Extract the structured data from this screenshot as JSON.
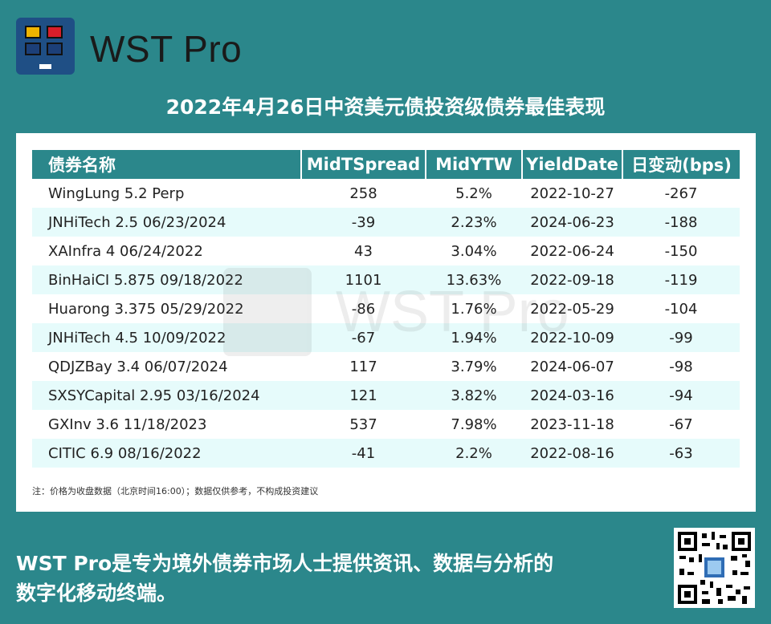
{
  "brand": {
    "name": "WST Pro"
  },
  "title": "2022年4月26日中资美元债投资级债券最佳表现",
  "table": {
    "headers": [
      "债券名称",
      "MidTSpread",
      "MidYTW",
      "YieldDate",
      "日变动(bps)"
    ],
    "rows": [
      [
        "WingLung 5.2 Perp",
        "258",
        "5.2%",
        "2022-10-27",
        "-267"
      ],
      [
        "JNHiTech 2.5 06/23/2024",
        "-39",
        "2.23%",
        "2024-06-23",
        "-188"
      ],
      [
        "XAInfra 4 06/24/2022",
        "43",
        "3.04%",
        "2022-06-24",
        "-150"
      ],
      [
        "BinHaiCI 5.875 09/18/2022",
        "1101",
        "13.63%",
        "2022-09-18",
        "-119"
      ],
      [
        "Huarong 3.375 05/29/2022",
        "-86",
        "1.76%",
        "2022-05-29",
        "-104"
      ],
      [
        "JNHiTech 4.5 10/09/2022",
        "-67",
        "1.94%",
        "2022-10-09",
        "-99"
      ],
      [
        "QDJZBay 3.4 06/07/2024",
        "117",
        "3.79%",
        "2024-06-07",
        "-98"
      ],
      [
        "SXSYCapital 2.95 03/16/2024",
        "121",
        "3.82%",
        "2024-03-16",
        "-94"
      ],
      [
        "GXInv 3.6 11/18/2023",
        "537",
        "7.98%",
        "2023-11-18",
        "-67"
      ],
      [
        "CITIC 6.9 08/16/2022",
        "-41",
        "2.2%",
        "2022-08-16",
        "-63"
      ]
    ]
  },
  "note": "注：价格为收盘数据（北京时间16:00）；数据仅供参考，不构成投资建议",
  "watermark": "WST Pro",
  "footer": {
    "line1": "WST Pro是专为境外债券市场人士提供资讯、数据与分析的",
    "line2": "数字化移动终端。"
  },
  "colors": {
    "background": "#2b878b",
    "header_bg": "#2b878b",
    "alt_row": "#e6fbfb",
    "logo_bg": "#1f4f85",
    "logo_yellow": "#f0b400",
    "logo_red": "#d81e2a",
    "logo_navy": "#1c3f78"
  },
  "icons": {
    "logo": "wst-logo-icon",
    "qr": "qr-code-icon"
  }
}
